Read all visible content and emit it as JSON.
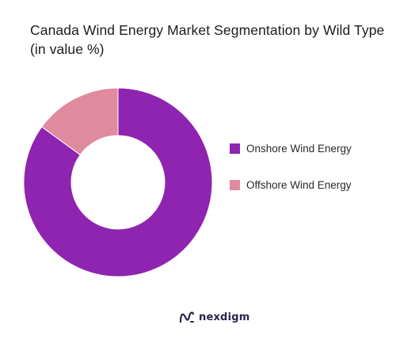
{
  "chart_data": {
    "type": "pie",
    "style": "donut",
    "title": "Canada Wind Energy Market Segmentation by Wild Type (in value %)",
    "categories": [
      "Onshore Wind Energy",
      "Offshore Wind Energy"
    ],
    "values": [
      85,
      15
    ],
    "colors": [
      "#8e24b0",
      "#e08aa0"
    ],
    "legend_position": "right"
  },
  "brand": {
    "name": "nexdigm",
    "color": "#2b2450",
    "icon": "nexdigm-logo-icon"
  }
}
